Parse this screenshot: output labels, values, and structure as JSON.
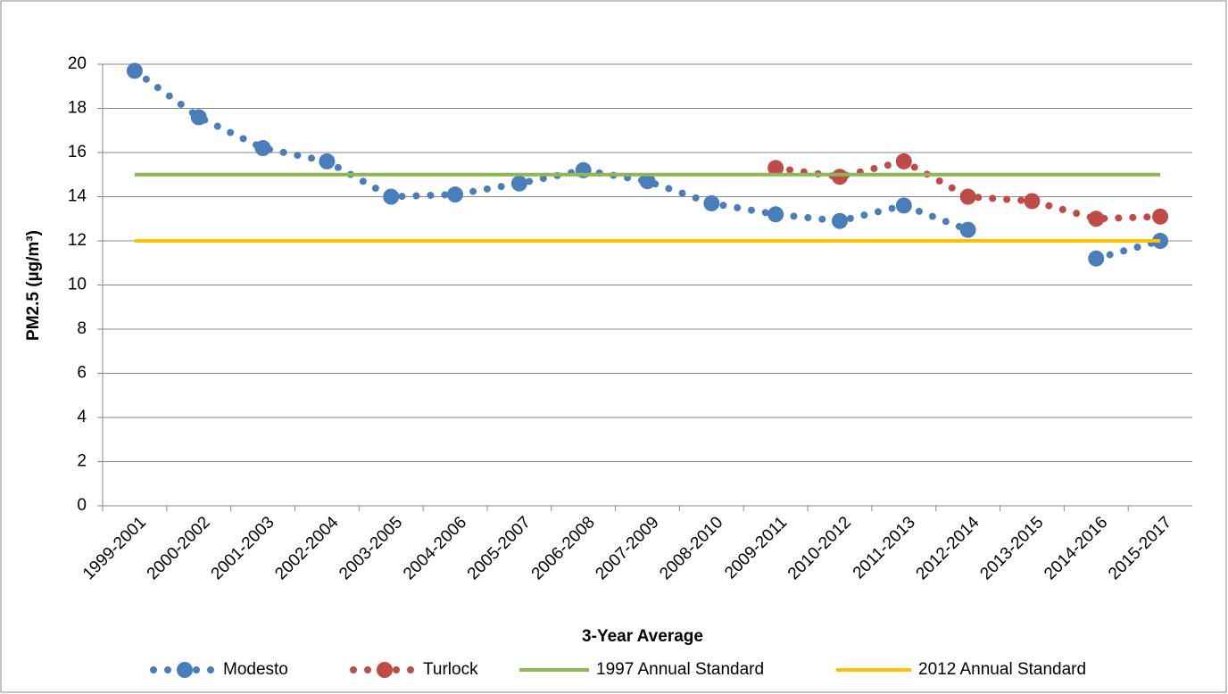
{
  "chart_data": {
    "type": "line",
    "x_label": "3-Year Average",
    "y_label": "PM2.5 (µg/m³)",
    "categories": [
      "1999-2001",
      "2000-2002",
      "2001-2003",
      "2002-2004",
      "2003-2005",
      "2004-2006",
      "2005-2007",
      "2006-2008",
      "2007-2009",
      "2008-2010",
      "2009-2011",
      "2010-2012",
      "2011-2013",
      "2012-2014",
      "2013-2015",
      "2014-2016",
      "2015-2017"
    ],
    "series": [
      {
        "name": "Modesto",
        "color": "#4a7ebb",
        "line_style": "dotted",
        "markers": true,
        "values": [
          19.7,
          17.6,
          16.2,
          15.6,
          14.0,
          14.1,
          14.6,
          15.2,
          14.7,
          13.7,
          13.2,
          12.9,
          13.6,
          12.5,
          null,
          11.2,
          12.0
        ]
      },
      {
        "name": "Turlock",
        "color": "#be4b48",
        "line_style": "dotted",
        "markers": true,
        "values": [
          null,
          null,
          null,
          null,
          null,
          null,
          null,
          null,
          null,
          null,
          15.3,
          14.9,
          15.6,
          14.0,
          13.8,
          13.0,
          13.1
        ]
      },
      {
        "name": "1997 Annual Standard",
        "color": "#8db654",
        "line_style": "solid",
        "markers": false,
        "values": [
          15,
          15,
          15,
          15,
          15,
          15,
          15,
          15,
          15,
          15,
          15,
          15,
          15,
          15,
          15,
          15,
          15
        ]
      },
      {
        "name": "2012 Annual Standard",
        "color": "#ffc000",
        "line_style": "solid",
        "markers": false,
        "values": [
          12,
          12,
          12,
          12,
          12,
          12,
          12,
          12,
          12,
          12,
          12,
          12,
          12,
          12,
          12,
          12,
          12
        ]
      }
    ],
    "ylim": [
      0,
      20
    ],
    "yticks": [
      0,
      2,
      4,
      6,
      8,
      10,
      12,
      14,
      16,
      18,
      20
    ],
    "grid": true,
    "legend": "bottom"
  }
}
